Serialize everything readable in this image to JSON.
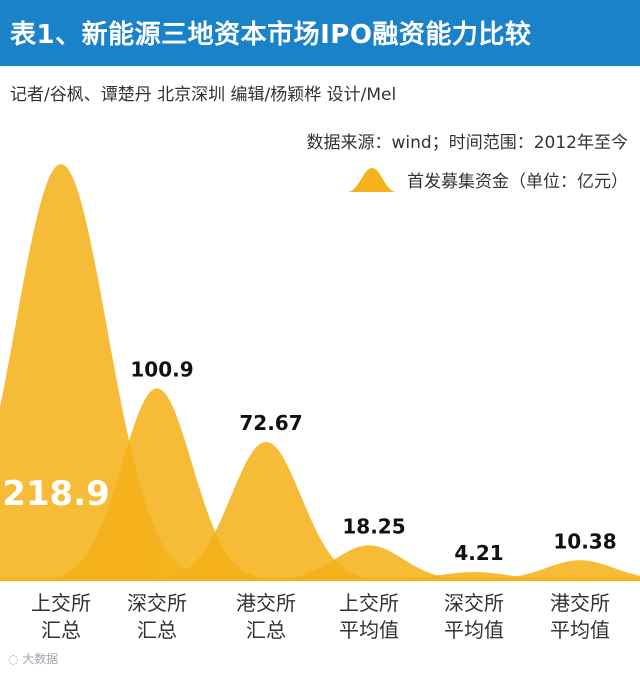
{
  "title": "表1、新能源三地资本市场IPO融资能力比较",
  "credit": "记者/谷枫、谭楚丹 北京深圳 编辑/杨颖桦 设计/Mel",
  "source": "数据来源：wind；时间范围：2012年至今",
  "colors": {
    "title_bg": "#1a82c8",
    "peak": "#f5b21b",
    "overlap": "#d98a12"
  },
  "watermark": "大数据",
  "chart_data": {
    "type": "area",
    "categories": [
      "上交所\n汇总",
      "深交所\n汇总",
      "港交所\n汇总",
      "上交所\n平均值",
      "深交所\n平均值",
      "港交所\n平均值"
    ],
    "series": [
      {
        "name": "首发募集资金（单位：亿元）",
        "values": [
          218.9,
          100.9,
          72.67,
          18.25,
          4.21,
          10.38
        ]
      }
    ],
    "data_labels": [
      "218.9",
      "100.9",
      "72.67",
      "18.25",
      "4.21",
      "10.38"
    ],
    "legend": "top-right",
    "grid": false
  }
}
